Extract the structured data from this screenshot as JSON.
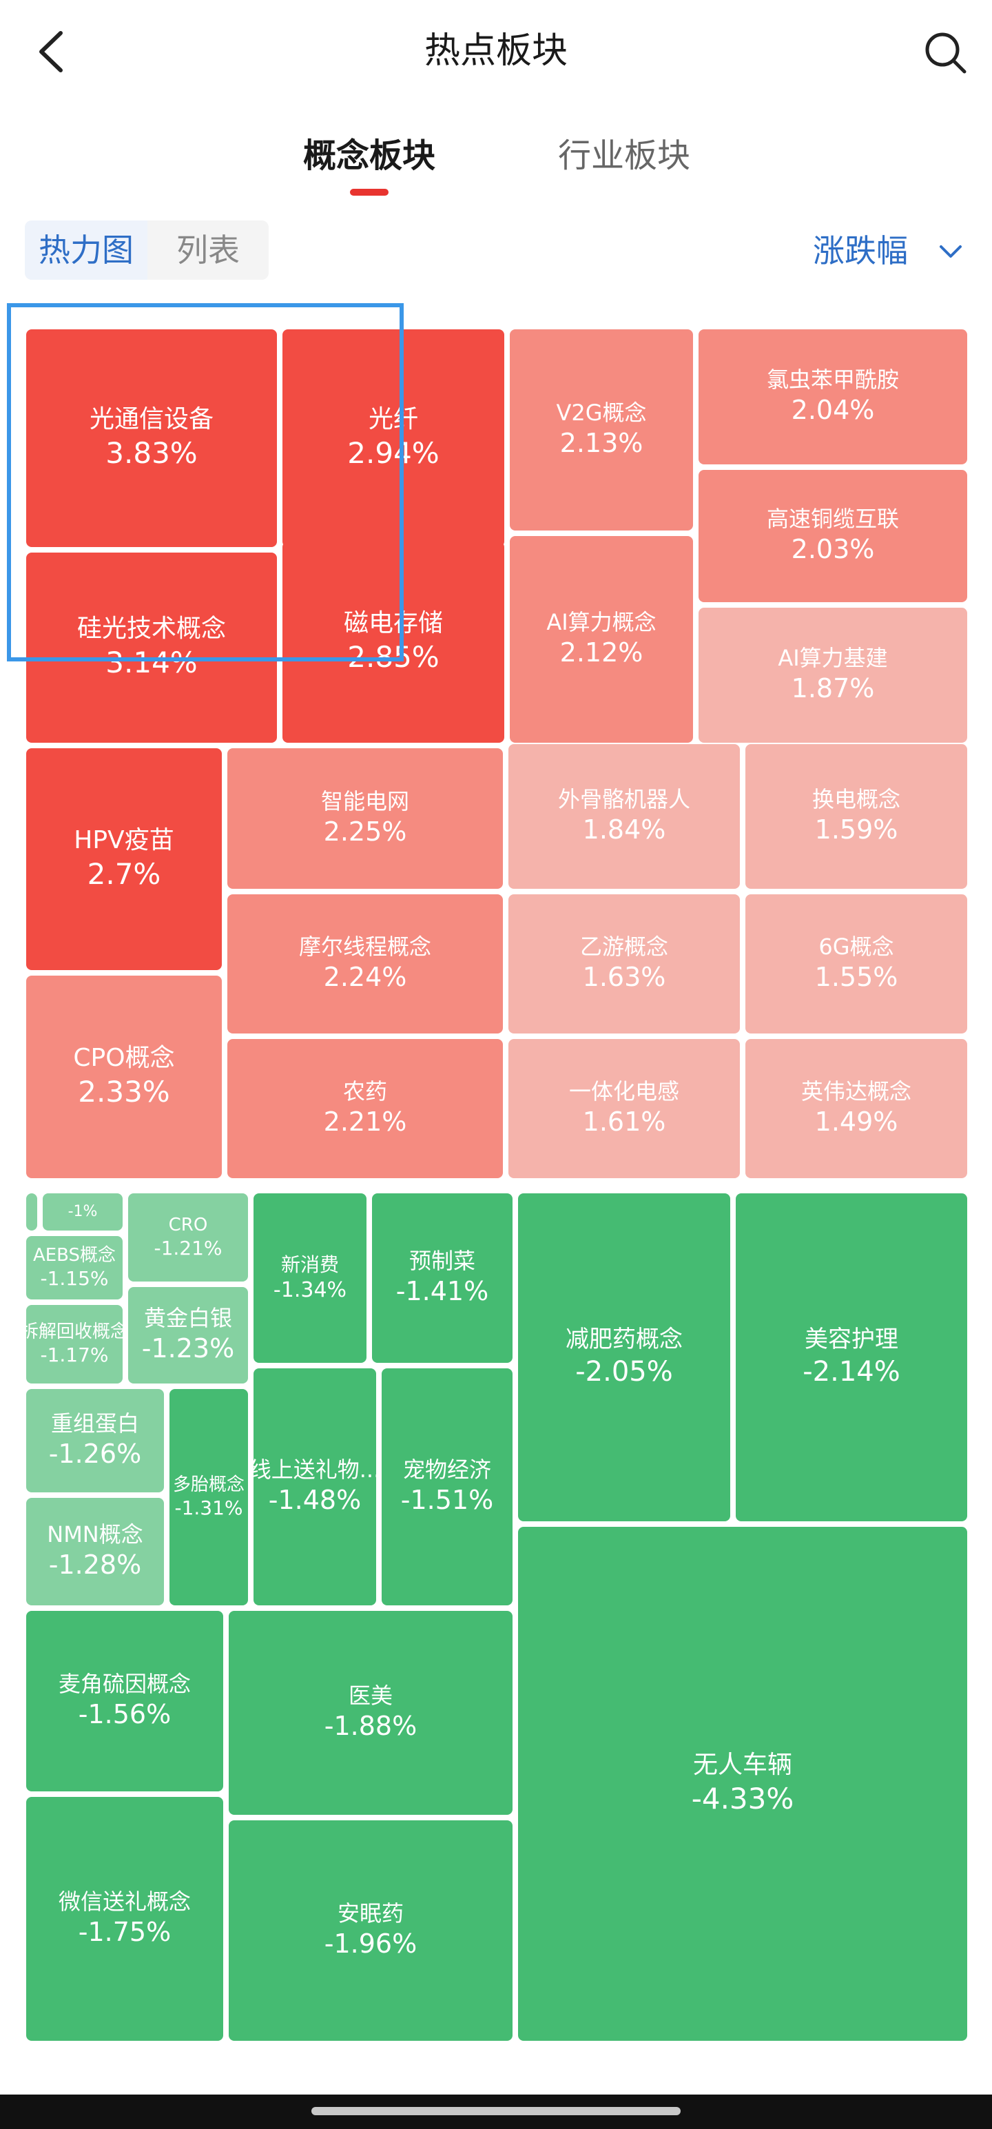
{
  "header": {
    "title": "热点板块"
  },
  "tabs": [
    {
      "label": "概念板块",
      "active": true
    },
    {
      "label": "行业板块",
      "active": false
    }
  ],
  "view_toggle": {
    "active_label": "热力图",
    "inactive_label": "列表"
  },
  "sort": {
    "label": "涨跌幅"
  },
  "colors": {
    "red_strong": "#f24c43",
    "red_mid": "#f58b80",
    "red_light": "#f5b3ab",
    "green_strong": "#45bb72",
    "green_light": "#85d1a1",
    "accent_blue": "#2e6ec6"
  },
  "tiles": [
    {
      "name": "光通信设备",
      "change": "3.83%",
      "tone": "red_strong"
    },
    {
      "name": "光纤",
      "change": "2.94%",
      "tone": "red_strong"
    },
    {
      "name": "硅光技术概念",
      "change": "3.14%",
      "tone": "red_strong"
    },
    {
      "name": "磁电存储",
      "change": "2.85%",
      "tone": "red_strong"
    },
    {
      "name": "V2G概念",
      "change": "2.13%",
      "tone": "red_mid"
    },
    {
      "name": "氯虫苯甲酰胺",
      "change": "2.04%",
      "tone": "red_mid"
    },
    {
      "name": "高速铜缆互联",
      "change": "2.03%",
      "tone": "red_mid"
    },
    {
      "name": "AI算力概念",
      "change": "2.12%",
      "tone": "red_mid"
    },
    {
      "name": "AI算力基建",
      "change": "1.87%",
      "tone": "red_light"
    },
    {
      "name": "HPV疫苗",
      "change": "2.7%",
      "tone": "red_strong"
    },
    {
      "name": "智能电网",
      "change": "2.25%",
      "tone": "red_mid"
    },
    {
      "name": "外骨骼机器人",
      "change": "1.84%",
      "tone": "red_light"
    },
    {
      "name": "换电概念",
      "change": "1.59%",
      "tone": "red_light"
    },
    {
      "name": "摩尔线程概念",
      "change": "2.24%",
      "tone": "red_mid"
    },
    {
      "name": "乙游概念",
      "change": "1.63%",
      "tone": "red_light"
    },
    {
      "name": "6G概念",
      "change": "1.55%",
      "tone": "red_light"
    },
    {
      "name": "CPO概念",
      "change": "2.33%",
      "tone": "red_mid"
    },
    {
      "name": "农药",
      "change": "2.21%",
      "tone": "red_mid"
    },
    {
      "name": "一体化电感",
      "change": "1.61%",
      "tone": "red_light"
    },
    {
      "name": "英伟达概念",
      "change": "1.49%",
      "tone": "red_light"
    },
    {
      "name": "",
      "change": "",
      "tone": "green_light"
    },
    {
      "name": "",
      "change": "-1%",
      "tone": "green_light"
    },
    {
      "name": "CRO",
      "change": "-1.21%",
      "tone": "green_light"
    },
    {
      "name": "AEBS概念",
      "change": "-1.15%",
      "tone": "green_light"
    },
    {
      "name": "新消费",
      "change": "-1.34%",
      "tone": "green_strong"
    },
    {
      "name": "预制菜",
      "change": "-1.41%",
      "tone": "green_strong"
    },
    {
      "name": "减肥药概念",
      "change": "-2.05%",
      "tone": "green_strong"
    },
    {
      "name": "美容护理",
      "change": "-2.14%",
      "tone": "green_strong"
    },
    {
      "name": "拆解回收概念",
      "change": "-1.17%",
      "tone": "green_light"
    },
    {
      "name": "黄金白银",
      "change": "-1.23%",
      "tone": "green_light"
    },
    {
      "name": "重组蛋白",
      "change": "-1.26%",
      "tone": "green_light"
    },
    {
      "name": "多胎概念",
      "change": "-1.31%",
      "tone": "green_strong"
    },
    {
      "name": "线上送礼物...",
      "change": "-1.48%",
      "tone": "green_strong"
    },
    {
      "name": "宠物经济",
      "change": "-1.51%",
      "tone": "green_strong"
    },
    {
      "name": "NMN概念",
      "change": "-1.28%",
      "tone": "green_light"
    },
    {
      "name": "麦角硫因概念",
      "change": "-1.56%",
      "tone": "green_strong"
    },
    {
      "name": "医美",
      "change": "-1.88%",
      "tone": "green_strong"
    },
    {
      "name": "无人车辆",
      "change": "-4.33%",
      "tone": "green_strong"
    },
    {
      "name": "微信送礼概念",
      "change": "-1.75%",
      "tone": "green_strong"
    },
    {
      "name": "安眠药",
      "change": "-1.96%",
      "tone": "green_strong"
    }
  ]
}
